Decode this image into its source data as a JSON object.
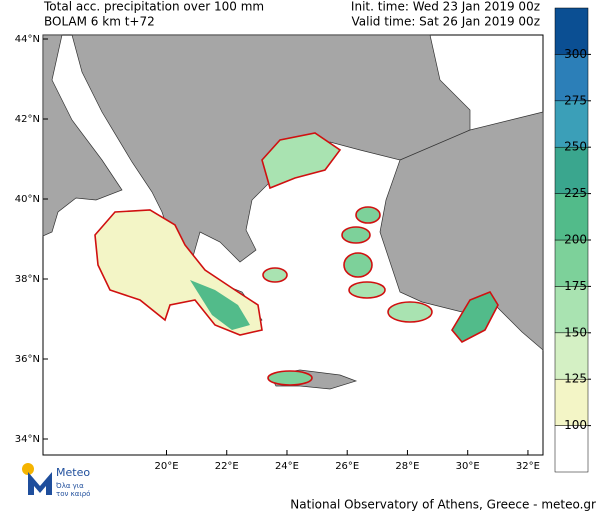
{
  "header": {
    "title": "Total acc. precipitation over 100 mm",
    "model": "BOLAM 6 km t+72",
    "init_time": "Init. time: Wed 23 Jan 2019 00z",
    "valid_time": "Valid time: Sat 26 Jan 2019 00z"
  },
  "map": {
    "lonlim": [
      15.9,
      32.5
    ],
    "latlim": [
      33.6,
      44.1
    ],
    "lat_ticks": [
      {
        "value": 44,
        "label": "44°N"
      },
      {
        "value": 42,
        "label": "42°N"
      },
      {
        "value": 40,
        "label": "40°N"
      },
      {
        "value": 38,
        "label": "38°N"
      },
      {
        "value": 36,
        "label": "36°N"
      },
      {
        "value": 34,
        "label": "34°N"
      }
    ],
    "lon_ticks": [
      {
        "value": 20,
        "label": "20°E"
      },
      {
        "value": 22,
        "label": "22°E"
      },
      {
        "value": 24,
        "label": "24°E"
      },
      {
        "value": 26,
        "label": "26°E"
      },
      {
        "value": 28,
        "label": "28°E"
      },
      {
        "value": 30,
        "label": "30°E"
      },
      {
        "value": 32,
        "label": "32°E"
      }
    ]
  },
  "colorbar": {
    "levels": [
      100,
      125,
      150,
      175,
      200,
      225,
      250,
      275,
      300
    ],
    "colors": [
      "#ffffff",
      "#f3f5c6",
      "#d4f0c4",
      "#a9e3b1",
      "#7dd19a",
      "#52bb8a",
      "#3aa68e",
      "#3b9fb8",
      "#2c7fb8",
      "#0b4f93"
    ]
  },
  "logo": {
    "name": "Meteo",
    "tagline_1": "Όλα για",
    "tagline_2": "τον καιρό"
  },
  "footer": "National Observatory of Athens, Greece - meteo.gr"
}
